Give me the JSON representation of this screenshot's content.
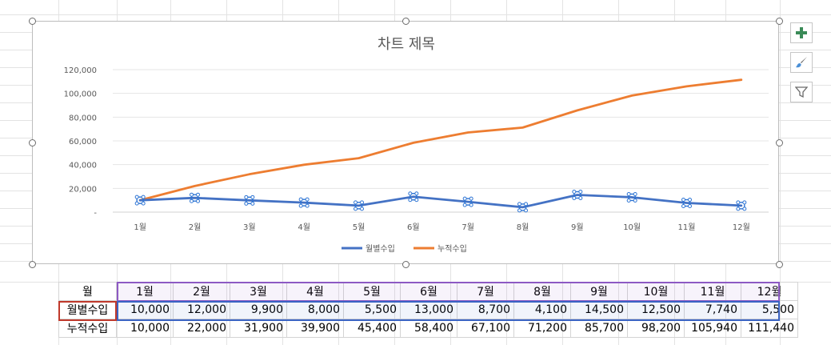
{
  "chart_data": {
    "type": "line",
    "title": "차트 제목",
    "categories": [
      "1월",
      "2월",
      "3월",
      "4월",
      "5월",
      "6월",
      "7월",
      "8월",
      "9월",
      "10월",
      "11월",
      "12월"
    ],
    "series": [
      {
        "name": "월별수입",
        "color": "#4472c4",
        "values": [
          10000,
          12000,
          9900,
          8000,
          5500,
          13000,
          8700,
          4100,
          14500,
          12500,
          7740,
          5500
        ]
      },
      {
        "name": "누적수입",
        "color": "#ed7d31",
        "values": [
          10000,
          22000,
          31900,
          39900,
          45400,
          58400,
          67100,
          71200,
          85700,
          98200,
          105940,
          111440
        ]
      }
    ],
    "yticks": [
      "-",
      "20,000",
      "40,000",
      "60,000",
      "80,000",
      "100,000",
      "120,000"
    ],
    "ylim": [
      0,
      120000
    ],
    "legend_position": "bottom",
    "grid": true
  },
  "table": {
    "header_label": "월",
    "months": [
      "1월",
      "2월",
      "3월",
      "4월",
      "5월",
      "6월",
      "7월",
      "8월",
      "9월",
      "10월",
      "11월",
      "12월"
    ],
    "rows": [
      {
        "label": "월별수입",
        "values": [
          "10,000",
          "12,000",
          "9,900",
          "8,000",
          "5,500",
          "13,000",
          "8,700",
          "4,100",
          "14,500",
          "12,500",
          "7,740",
          "5,500"
        ]
      },
      {
        "label": "누적수입",
        "values": [
          "10,000",
          "22,000",
          "31,900",
          "39,900",
          "45,400",
          "58,400",
          "67,100",
          "71,200",
          "85,700",
          "98,200",
          "105,940",
          "111,440"
        ]
      }
    ]
  },
  "side_buttons": {
    "elements_icon": "plus-icon",
    "style_icon": "brush-icon",
    "filter_icon": "filter-icon",
    "accent": "#3a8a57"
  }
}
